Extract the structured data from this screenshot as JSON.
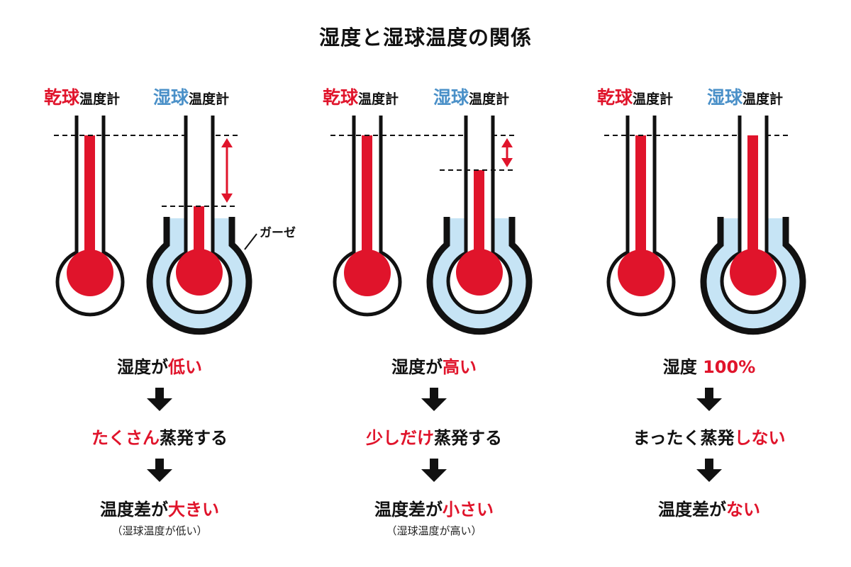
{
  "title": "湿度と湿球温度の関係",
  "labels": {
    "dry_strong": "乾球",
    "wet_strong": "湿球",
    "suffix": "温度計",
    "gauze": "ガーゼ"
  },
  "colors": {
    "red": "#e0142b",
    "blue": "#4a90c8",
    "water": "#c6e4f5",
    "ink": "#111111"
  },
  "panels": [
    {
      "humidity_prefix": "湿度が",
      "humidity_value": "低い",
      "evap_value": "たくさん",
      "evap_suffix": "蒸発する",
      "diff_prefix": "温度差が",
      "diff_value": "大きい",
      "note": "（湿球温度が低い）"
    },
    {
      "humidity_prefix": "湿度が",
      "humidity_value": "高い",
      "evap_value": "少しだけ",
      "evap_suffix": "蒸発する",
      "diff_prefix": "温度差が",
      "diff_value": "小さい",
      "note": "（湿球温度が高い）"
    },
    {
      "humidity_prefix": "湿度",
      "humidity_value": "100%",
      "evap_value": "しない",
      "evap_prefix": "まったく蒸発",
      "diff_prefix": "温度差が",
      "diff_value": "ない",
      "note": ""
    }
  ]
}
